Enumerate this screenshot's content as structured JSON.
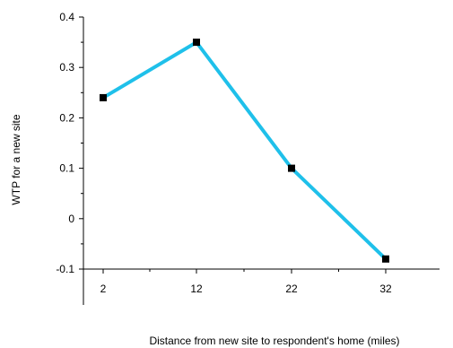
{
  "chart_data": {
    "type": "line",
    "title": "",
    "xlabel": "Distance from new site to respondent's home (miles)",
    "ylabel": "WTP for a new site",
    "x": [
      2,
      12,
      22,
      32
    ],
    "x_tick_labels": [
      "2",
      "12",
      "22",
      "32"
    ],
    "y_tick_labels": [
      "0.4",
      "0.3",
      "0.2",
      "0.1",
      "0",
      "-0.1"
    ],
    "y_ticks": [
      0.4,
      0.3,
      0.2,
      0.1,
      0,
      -0.1
    ],
    "ylim": [
      -0.1,
      0.4
    ],
    "grid": false,
    "series": [
      {
        "values": [
          0.24,
          0.35,
          0.1,
          -0.08
        ],
        "color": "#1fc0ea",
        "marker_color": "#000000"
      }
    ]
  }
}
